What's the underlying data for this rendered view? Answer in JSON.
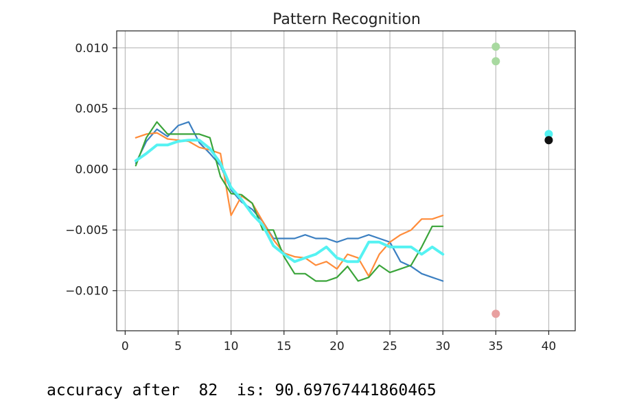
{
  "chart_data": {
    "type": "line",
    "title": "Pattern Recognition",
    "xlabel": "",
    "ylabel": "",
    "xlim": [
      -0.8,
      42.5
    ],
    "ylim": [
      -0.0133,
      0.0114
    ],
    "xticks": [
      0,
      5,
      10,
      15,
      20,
      25,
      30,
      35,
      40
    ],
    "xtick_labels": [
      "0",
      "5",
      "10",
      "15",
      "20",
      "25",
      "30",
      "35",
      "40"
    ],
    "yticks": [
      0.01,
      0.005,
      0.0,
      -0.005,
      -0.01
    ],
    "ytick_labels": [
      "0.010",
      "0.005",
      "0.000",
      "−0.005",
      "−0.010"
    ],
    "grid": true,
    "legend": "none",
    "series": [
      {
        "color": "#3b7fc1",
        "x": [
          1,
          2,
          3,
          4,
          5,
          6,
          7,
          8,
          9,
          10,
          11,
          12,
          13,
          14,
          15,
          16,
          17,
          18,
          19,
          20,
          21,
          22,
          23,
          24,
          25,
          26,
          27,
          28,
          29,
          30
        ],
        "values": [
          0.0005,
          0.0023,
          0.0033,
          0.0027,
          0.0036,
          0.0039,
          0.0022,
          0.0013,
          0.0003,
          -0.0017,
          -0.0027,
          -0.0033,
          -0.0043,
          -0.0057,
          -0.0057,
          -0.0057,
          -0.0054,
          -0.0057,
          -0.0057,
          -0.006,
          -0.0057,
          -0.0057,
          -0.0054,
          -0.0057,
          -0.006,
          -0.0076,
          -0.008,
          -0.0086,
          -0.0089,
          -0.0092
        ]
      },
      {
        "color": "#ff8c3a",
        "x": [
          1,
          2,
          3,
          4,
          5,
          6,
          7,
          8,
          9,
          10,
          11,
          12,
          13,
          14,
          15,
          16,
          17,
          18,
          19,
          20,
          21,
          22,
          23,
          24,
          25,
          26,
          27,
          28,
          29,
          30
        ],
        "values": [
          0.0026,
          0.0029,
          0.003,
          0.0025,
          0.0024,
          0.0023,
          0.0018,
          0.0016,
          0.0013,
          -0.0038,
          -0.0022,
          -0.0028,
          -0.0043,
          -0.0058,
          -0.0069,
          -0.0072,
          -0.0073,
          -0.0079,
          -0.0076,
          -0.0082,
          -0.007,
          -0.0073,
          -0.0088,
          -0.007,
          -0.006,
          -0.0054,
          -0.005,
          -0.0041,
          -0.0041,
          -0.0038
        ]
      },
      {
        "color": "#3aa43a",
        "x": [
          1,
          2,
          3,
          4,
          5,
          6,
          7,
          8,
          9,
          10,
          11,
          12,
          13,
          14,
          15,
          16,
          17,
          18,
          19,
          20,
          21,
          22,
          23,
          24,
          25,
          26,
          27,
          28,
          29,
          30
        ],
        "values": [
          0.0003,
          0.0026,
          0.0039,
          0.0029,
          0.0029,
          0.0029,
          0.0029,
          0.0026,
          -0.0006,
          -0.002,
          -0.0021,
          -0.0028,
          -0.005,
          -0.005,
          -0.0072,
          -0.0086,
          -0.0086,
          -0.0092,
          -0.0092,
          -0.0089,
          -0.008,
          -0.0092,
          -0.0089,
          -0.0079,
          -0.0085,
          -0.0082,
          -0.0079,
          -0.0064,
          -0.0047,
          -0.0047
        ]
      },
      {
        "color": "#55f2f2",
        "width": 4,
        "x": [
          1,
          2,
          3,
          4,
          5,
          6,
          7,
          8,
          9,
          10,
          11,
          12,
          13,
          14,
          15,
          16,
          17,
          18,
          19,
          20,
          21,
          22,
          23,
          24,
          25,
          26,
          27,
          28,
          29,
          30
        ],
        "values": [
          0.0007,
          0.0013,
          0.002,
          0.002,
          0.0023,
          0.0024,
          0.0024,
          0.0017,
          0.0005,
          -0.0015,
          -0.0025,
          -0.0037,
          -0.0046,
          -0.0063,
          -0.007,
          -0.0076,
          -0.0073,
          -0.007,
          -0.0064,
          -0.0073,
          -0.0076,
          -0.0076,
          -0.006,
          -0.006,
          -0.0064,
          -0.0064,
          -0.0064,
          -0.007,
          -0.0064,
          -0.007
        ]
      }
    ],
    "points": [
      {
        "x": 35,
        "y": 0.0101,
        "color": "#a8d9a0"
      },
      {
        "x": 35,
        "y": 0.0089,
        "color": "#a8d9a0"
      },
      {
        "x": 35,
        "y": -0.0119,
        "color": "#e8a0a0"
      },
      {
        "x": 40,
        "y": 0.0029,
        "color": "#55f2f2"
      },
      {
        "x": 40,
        "y": 0.0024,
        "color": "#111111"
      }
    ]
  },
  "output": {
    "accuracy_text": "accuracy after  82  is: 90.69767441860465"
  }
}
